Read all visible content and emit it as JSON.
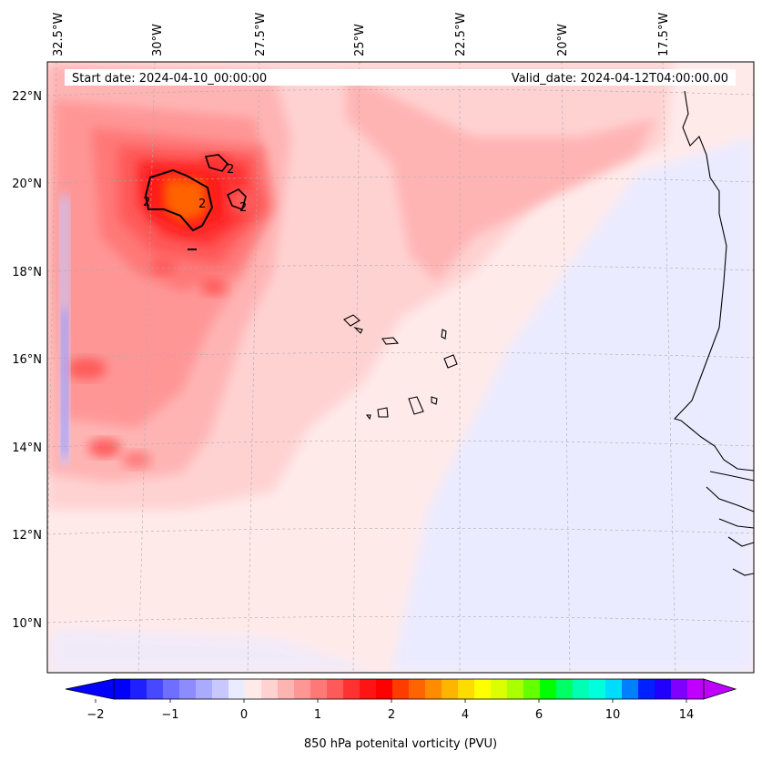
{
  "map": {
    "start_date_label": "Start date: 2024-04-10_00:00:00",
    "valid_date_label": "Valid_date: 2024-04-12T04:00:00.00",
    "lon_labels": [
      "32.5°W",
      "30°W",
      "27.5°W",
      "25°W",
      "22.5°W",
      "20°W",
      "17.5°W"
    ],
    "lat_labels": [
      "22°N",
      "20°N",
      "18°N",
      "16°N",
      "14°N",
      "12°N",
      "10°N"
    ],
    "contour_labels": [
      "2",
      "2",
      "2",
      "2"
    ]
  },
  "colorbar": {
    "title": "850 hPa potenital vorticity (PVU)",
    "tick_labels": [
      "−2",
      "−1",
      "0",
      "1",
      "2",
      "4",
      "6",
      "10",
      "14"
    ],
    "colors": [
      "#0000ff",
      "#2020ff",
      "#4848ff",
      "#6e6eff",
      "#8c8cff",
      "#aaaaff",
      "#c8c8ff",
      "#ebebff",
      "#ffeaea",
      "#ffd2d2",
      "#ffb4b4",
      "#ff9696",
      "#ff7878",
      "#ff5a5a",
      "#ff3232",
      "#ff1414",
      "#ff0000",
      "#ff3c00",
      "#ff6400",
      "#ff8c00",
      "#ffb400",
      "#ffdc00",
      "#ffff00",
      "#dcff00",
      "#aaff00",
      "#64ff00",
      "#00ff00",
      "#00ff64",
      "#00ffb4",
      "#00ffdc",
      "#00dcff",
      "#0080ff",
      "#0020ff",
      "#2000ff",
      "#8000ff",
      "#c000ff"
    ]
  }
}
